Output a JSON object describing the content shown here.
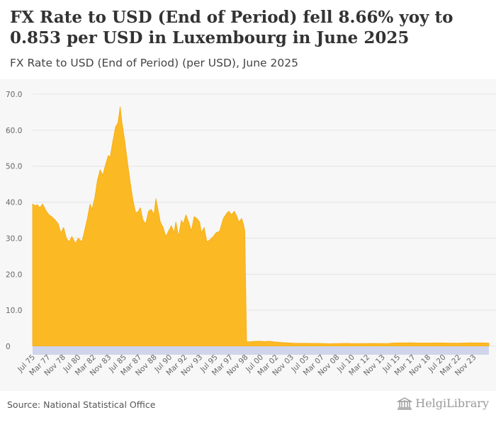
{
  "header": {
    "title": "FX Rate to USD (End of Period) fell 8.66% yoy to 0.853 per USD in Luxembourg in June 2025",
    "subtitle": "FX Rate to USD (End of Period) (per USD), June 2025"
  },
  "footer": {
    "source": "Source: National Statistical Office",
    "logo_text": "HelgiLibrary"
  },
  "colors": {
    "area": "#fbb924",
    "area_stroke": "#f7ac12",
    "grid": "#e4e4e4",
    "plot_bg": "#f7f7f7",
    "axis_band": "#cfd5ea"
  },
  "chart_data": {
    "type": "area",
    "title": "FX Rate to USD (End of Period) (per USD), June 2025",
    "xlabel": "",
    "ylabel": "",
    "ylim": [
      0,
      70
    ],
    "yticks": [
      "0",
      "10.0",
      "20.0",
      "30.0",
      "40.0",
      "50.0",
      "60.0",
      "70.0"
    ],
    "xlim": [
      1975.5,
      2025.5
    ],
    "xticks": [
      {
        "label": "Jul 75",
        "x": 1975.5
      },
      {
        "label": "Mar 77",
        "x": 1977.17
      },
      {
        "label": "Nov 78",
        "x": 1978.83
      },
      {
        "label": "Jul 80",
        "x": 1980.5
      },
      {
        "label": "Mar 82",
        "x": 1982.17
      },
      {
        "label": "Nov 83",
        "x": 1983.83
      },
      {
        "label": "Jul 85",
        "x": 1985.5
      },
      {
        "label": "Mar 87",
        "x": 1987.17
      },
      {
        "label": "Nov 88",
        "x": 1988.83
      },
      {
        "label": "Jul 90",
        "x": 1990.5
      },
      {
        "label": "Mar 92",
        "x": 1992.17
      },
      {
        "label": "Nov 93",
        "x": 1993.83
      },
      {
        "label": "Jul 95",
        "x": 1995.5
      },
      {
        "label": "Mar 97",
        "x": 1997.17
      },
      {
        "label": "Nov 98",
        "x": 1998.83
      },
      {
        "label": "Jul 00",
        "x": 2000.5
      },
      {
        "label": "Mar 02",
        "x": 2002.17
      },
      {
        "label": "Nov 03",
        "x": 2003.83
      },
      {
        "label": "Jul 05",
        "x": 2005.5
      },
      {
        "label": "Mar 07",
        "x": 2007.17
      },
      {
        "label": "Nov 08",
        "x": 2008.83
      },
      {
        "label": "Jul 10",
        "x": 2010.5
      },
      {
        "label": "Mar 12",
        "x": 2012.17
      },
      {
        "label": "Nov 13",
        "x": 2013.83
      },
      {
        "label": "Jul 15",
        "x": 2015.5
      },
      {
        "label": "Mar 17",
        "x": 2017.17
      },
      {
        "label": "Nov 18",
        "x": 2018.83
      },
      {
        "label": "Jul 20",
        "x": 2020.5
      },
      {
        "label": "Mar 22",
        "x": 2022.17
      },
      {
        "label": "Nov 23",
        "x": 2023.83
      }
    ],
    "series": [
      {
        "name": "FX Rate to USD (End of Period)",
        "x": [
          1975.5,
          1975.8,
          1976.0,
          1976.3,
          1976.6,
          1977.0,
          1977.3,
          1977.6,
          1978.0,
          1978.3,
          1978.6,
          1978.9,
          1979.2,
          1979.5,
          1979.8,
          1980.2,
          1980.5,
          1980.9,
          1981.1,
          1981.5,
          1981.8,
          1982.0,
          1982.3,
          1982.6,
          1982.9,
          1983.2,
          1983.5,
          1983.8,
          1984.0,
          1984.3,
          1984.6,
          1984.85,
          1985.1,
          1985.3,
          1985.6,
          1985.9,
          1986.2,
          1986.5,
          1986.8,
          1987.1,
          1987.3,
          1987.6,
          1987.9,
          1988.2,
          1988.5,
          1988.8,
          1989.0,
          1989.2,
          1989.5,
          1989.8,
          1990.1,
          1990.4,
          1990.7,
          1991.0,
          1991.2,
          1991.5,
          1991.8,
          1992.0,
          1992.3,
          1992.6,
          1992.9,
          1993.2,
          1993.5,
          1993.8,
          1994.0,
          1994.3,
          1994.6,
          1994.9,
          1995.3,
          1995.6,
          1996.0,
          1996.4,
          1996.8,
          1997.0,
          1997.3,
          1997.6,
          1997.9,
          1998.1,
          1998.4,
          1998.6,
          1998.75,
          1998.95,
          1999.0,
          1999.5,
          2000.0,
          2000.5,
          2000.9,
          2001.5,
          2002.0,
          2002.5,
          2003.0,
          2003.5,
          2004.0,
          2005.0,
          2006.0,
          2007.0,
          2008.0,
          2008.5,
          2009.0,
          2010.0,
          2010.5,
          2011.0,
          2012.0,
          2013.0,
          2014.0,
          2014.5,
          2015.0,
          2016.0,
          2017.0,
          2018.0,
          2019.0,
          2020.0,
          2021.0,
          2022.0,
          2022.8,
          2023.5,
          2024.0,
          2024.5,
          2025.0,
          2025.5
        ],
        "values": [
          39.5,
          39.0,
          39.3,
          38.5,
          39.5,
          37.5,
          36.5,
          36.0,
          35.0,
          34.0,
          31.5,
          33.0,
          30.0,
          29.0,
          30.5,
          28.5,
          30.0,
          29.0,
          31.0,
          35.5,
          39.5,
          38.0,
          41.0,
          46.0,
          49.0,
          47.5,
          50.5,
          53.0,
          52.5,
          57.0,
          61.0,
          62.0,
          66.5,
          62.0,
          57.0,
          51.0,
          45.5,
          40.5,
          37.0,
          37.5,
          38.5,
          35.0,
          34.0,
          37.5,
          38.0,
          36.5,
          41.0,
          38.5,
          34.5,
          33.0,
          30.5,
          32.0,
          33.5,
          31.5,
          34.5,
          30.5,
          35.0,
          34.0,
          36.5,
          34.5,
          32.0,
          36.0,
          35.5,
          34.5,
          31.5,
          33.0,
          29.0,
          29.5,
          30.5,
          31.5,
          32.0,
          35.5,
          37.0,
          37.5,
          36.5,
          37.5,
          36.0,
          34.5,
          35.5,
          34.0,
          32.0,
          1.6,
          1.2,
          1.3,
          1.4,
          1.4,
          1.3,
          1.4,
          1.2,
          1.1,
          1.0,
          0.95,
          0.85,
          0.82,
          0.8,
          0.78,
          0.7,
          0.72,
          0.75,
          0.8,
          0.72,
          0.75,
          0.76,
          0.78,
          0.75,
          0.78,
          0.9,
          0.92,
          0.95,
          0.88,
          0.9,
          0.92,
          0.88,
          0.85,
          0.9,
          0.95,
          0.93,
          0.92,
          0.93,
          0.853
        ]
      }
    ]
  }
}
